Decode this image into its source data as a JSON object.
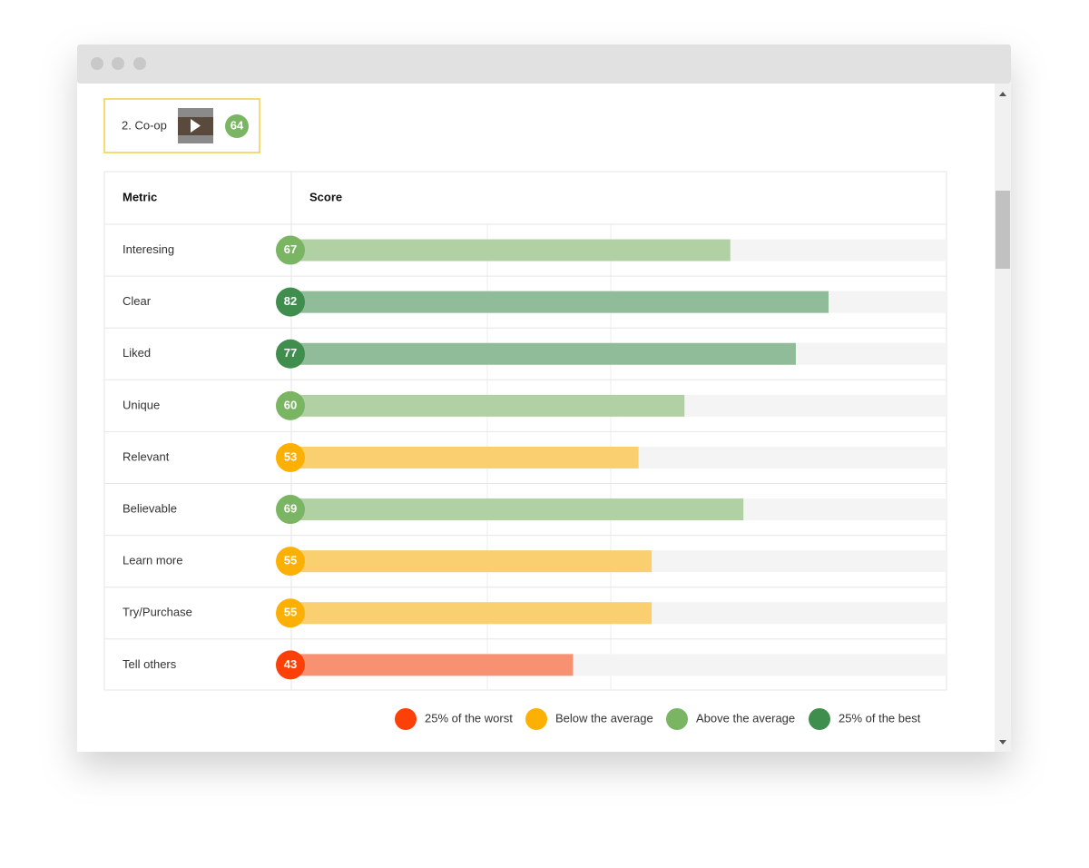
{
  "item": {
    "label": "2. Co-op",
    "score": 64,
    "color": "#7ab563"
  },
  "chart_data": {
    "type": "bar",
    "orientation": "horizontal",
    "columns": [
      "Metric",
      "Score"
    ],
    "categories": [
      "Interesing",
      "Clear",
      "Liked",
      "Unique",
      "Relevant",
      "Believable",
      "Learn more",
      "Try/Purchase",
      "Tell others"
    ],
    "values": [
      67,
      82,
      77,
      60,
      53,
      69,
      55,
      55,
      43
    ],
    "colors": [
      "#7ab563",
      "#3f8e4e",
      "#3f8e4e",
      "#7ab563",
      "#fdb004",
      "#7ab563",
      "#fdb004",
      "#fdb004",
      "#fc4007"
    ],
    "xlim": [
      0,
      100
    ],
    "legend": [
      {
        "name": "25% of the worst",
        "color": "#fc4007"
      },
      {
        "name": "Below the average",
        "color": "#fdb004"
      },
      {
        "name": "Above the average",
        "color": "#7ab563"
      },
      {
        "name": "25% of the best",
        "color": "#3f8e4e"
      }
    ]
  }
}
